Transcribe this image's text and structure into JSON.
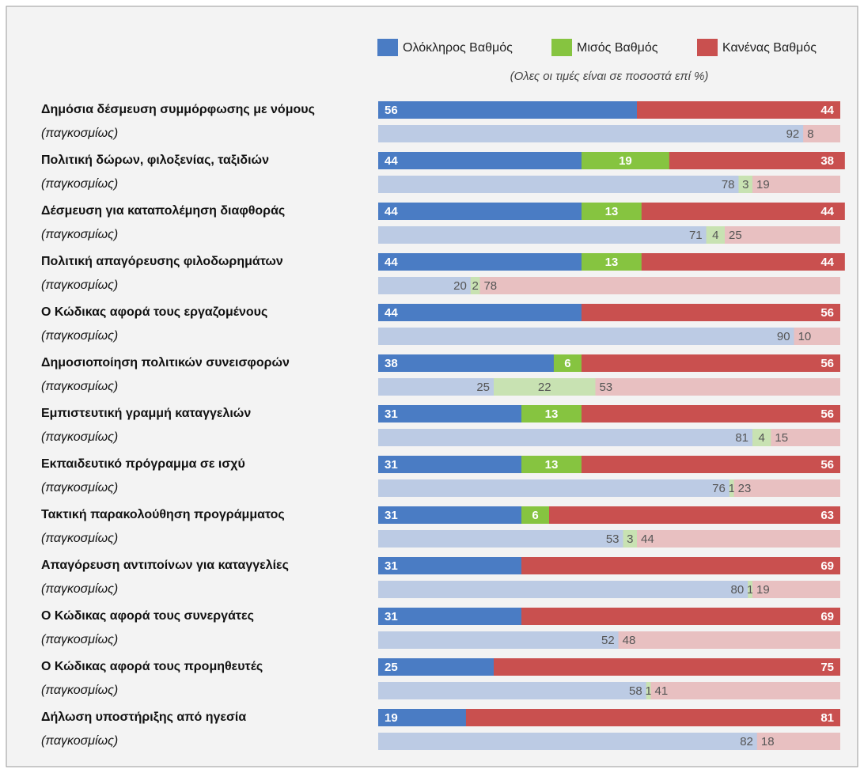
{
  "chart_data": {
    "type": "bar",
    "orientation": "horizontal",
    "stacked": true,
    "subtitle": "(Ολες οι τιμές είναι σε ποσοστά επί %)",
    "global_label": "(παγκοσμίως)",
    "xlim": [
      0,
      100
    ],
    "categories": [
      "Δημόσια δέσμευση συμμόρφωσης με νόμους",
      "Πολιτική δώρων, φιλοξενίας, ταξιδιών",
      "Δέσμευση για καταπολέμηση διαφθοράς",
      "Πολιτική απαγόρευσης φιλοδωρημάτων",
      "Ο Κώδικας αφορά τους εργαζομένους",
      "Δημοσιοποίηση πολιτικών συνεισφορών",
      "Εμπιστευτική γραμμή καταγγελιών",
      "Εκπαιδευτικό πρόγραμμα σε ισχύ",
      "Τακτική παρακολούθηση προγράμματος",
      "Απαγόρευση αντιποίνων για καταγγελίες",
      "Ο Κώδικας αφορά τους συνεργάτες",
      "Ο Κώδικας αφορά τους προμηθευτές",
      "Δήλωση υποστήριξης από ηγεσία"
    ],
    "series": [
      {
        "name": "Ολόκληρος Βαθμός",
        "color": "#4a7cc4",
        "global_color": "#bccbe4",
        "values": [
          56,
          44,
          44,
          44,
          44,
          38,
          31,
          31,
          31,
          31,
          31,
          25,
          19
        ],
        "global_values": [
          92,
          78,
          71,
          20,
          90,
          25,
          81,
          76,
          53,
          80,
          52,
          58,
          82
        ]
      },
      {
        "name": "Μισός Βαθμός",
        "color": "#86c440",
        "global_color": "#c8e2b2",
        "values": [
          null,
          19,
          13,
          13,
          null,
          6,
          13,
          13,
          6,
          null,
          null,
          null,
          null
        ],
        "global_values": [
          null,
          3,
          4,
          2,
          null,
          22,
          4,
          1,
          3,
          1,
          null,
          1,
          null
        ]
      },
      {
        "name": "Κανένας Βαθμός",
        "color": "#c9504f",
        "global_color": "#e8c0c1",
        "values": [
          44,
          38,
          44,
          44,
          56,
          56,
          56,
          56,
          63,
          69,
          69,
          75,
          81
        ],
        "global_values": [
          8,
          19,
          25,
          78,
          10,
          53,
          15,
          23,
          44,
          19,
          48,
          41,
          18
        ]
      }
    ]
  }
}
